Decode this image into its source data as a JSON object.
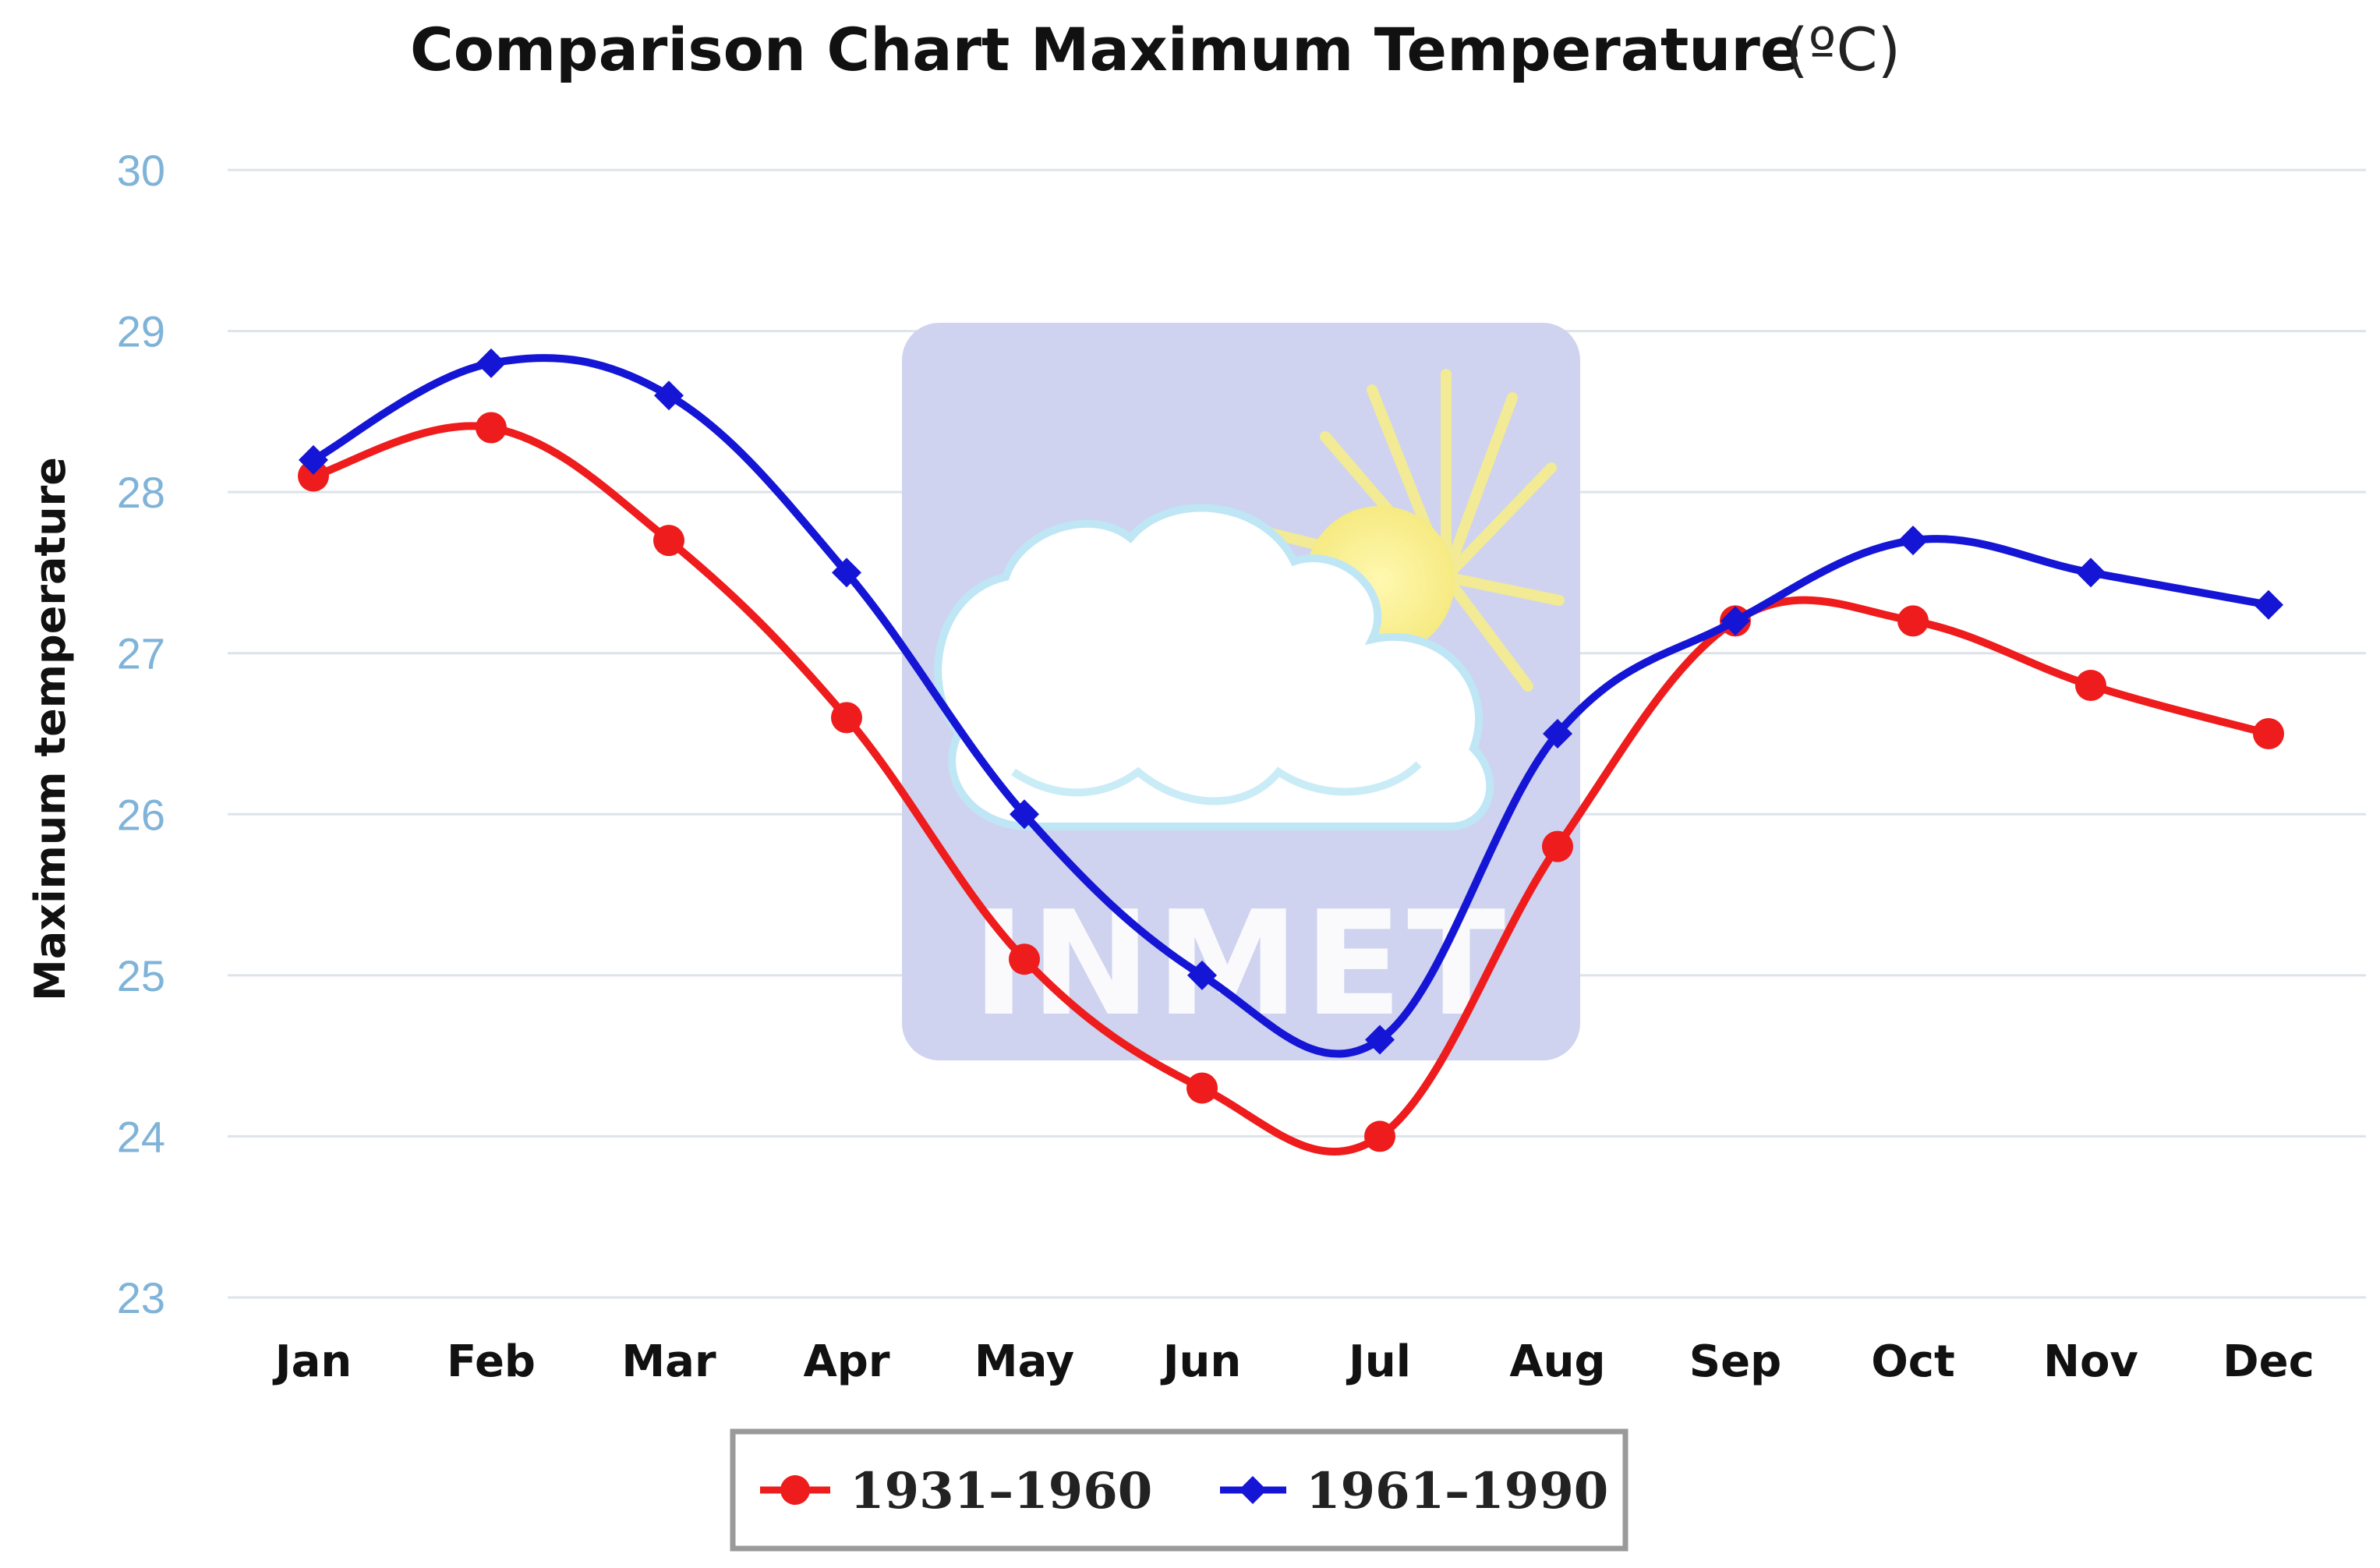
{
  "chart_data": {
    "type": "line",
    "title": "Comparison Chart Maximum Temperature",
    "unit": "(ºC)",
    "xlabel": "",
    "ylabel": "Maximum temperature",
    "categories": [
      "Jan",
      "Feb",
      "Mar",
      "Apr",
      "May",
      "Jun",
      "Jul",
      "Aug",
      "Sep",
      "Oct",
      "Nov",
      "Dec"
    ],
    "ylim": [
      23,
      30
    ],
    "yticks": [
      23,
      24,
      25,
      26,
      27,
      28,
      29,
      30
    ],
    "grid": true,
    "legend_position": "bottom-center",
    "series": [
      {
        "name": "1931–1960",
        "color": "#ee1c1c",
        "marker": "circle",
        "values": [
          28.1,
          28.4,
          27.7,
          26.6,
          25.1,
          24.3,
          24.0,
          25.8,
          27.2,
          27.2,
          26.8,
          26.5
        ]
      },
      {
        "name": "1961–1990",
        "color": "#1515d6",
        "marker": "diamond",
        "values": [
          28.2,
          28.8,
          28.6,
          27.5,
          26.0,
          25.0,
          24.6,
          26.5,
          27.2,
          27.7,
          27.5,
          27.3
        ]
      }
    ],
    "watermark": "INMET"
  }
}
